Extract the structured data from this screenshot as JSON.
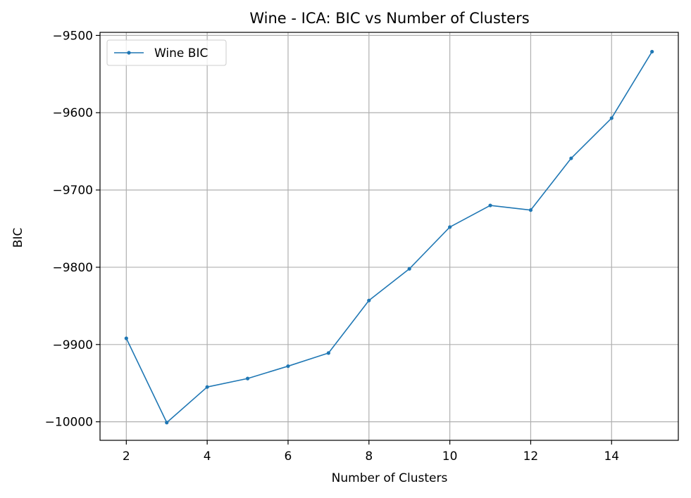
{
  "chart_data": {
    "type": "line",
    "title": "Wine - ICA: BIC vs Number of Clusters",
    "xlabel": "Number of Clusters",
    "ylabel": "BIC",
    "xlim": [
      1.35,
      15.65
    ],
    "ylim": [
      -10024,
      -9496
    ],
    "xticks": [
      2,
      4,
      6,
      8,
      10,
      12,
      14
    ],
    "xtick_labels": [
      "2",
      "4",
      "6",
      "8",
      "10",
      "12",
      "14"
    ],
    "yticks": [
      -10000,
      -9900,
      -9800,
      -9700,
      -9600,
      -9500
    ],
    "ytick_labels": [
      "−10000",
      "−9900",
      "−9800",
      "−9700",
      "−9600",
      "−9500"
    ],
    "grid": true,
    "legend_position": "top-left",
    "series": [
      {
        "name": "Wine BIC",
        "color": "#1f77b4",
        "marker": "dot",
        "x": [
          2,
          3,
          4,
          5,
          6,
          7,
          8,
          9,
          10,
          11,
          12,
          13,
          14,
          15
        ],
        "y": [
          -9892,
          -10001,
          -9955,
          -9944,
          -9928,
          -9911,
          -9843,
          -9802,
          -9748,
          -9720,
          -9726,
          -9659,
          -9607,
          -9521
        ]
      }
    ]
  }
}
